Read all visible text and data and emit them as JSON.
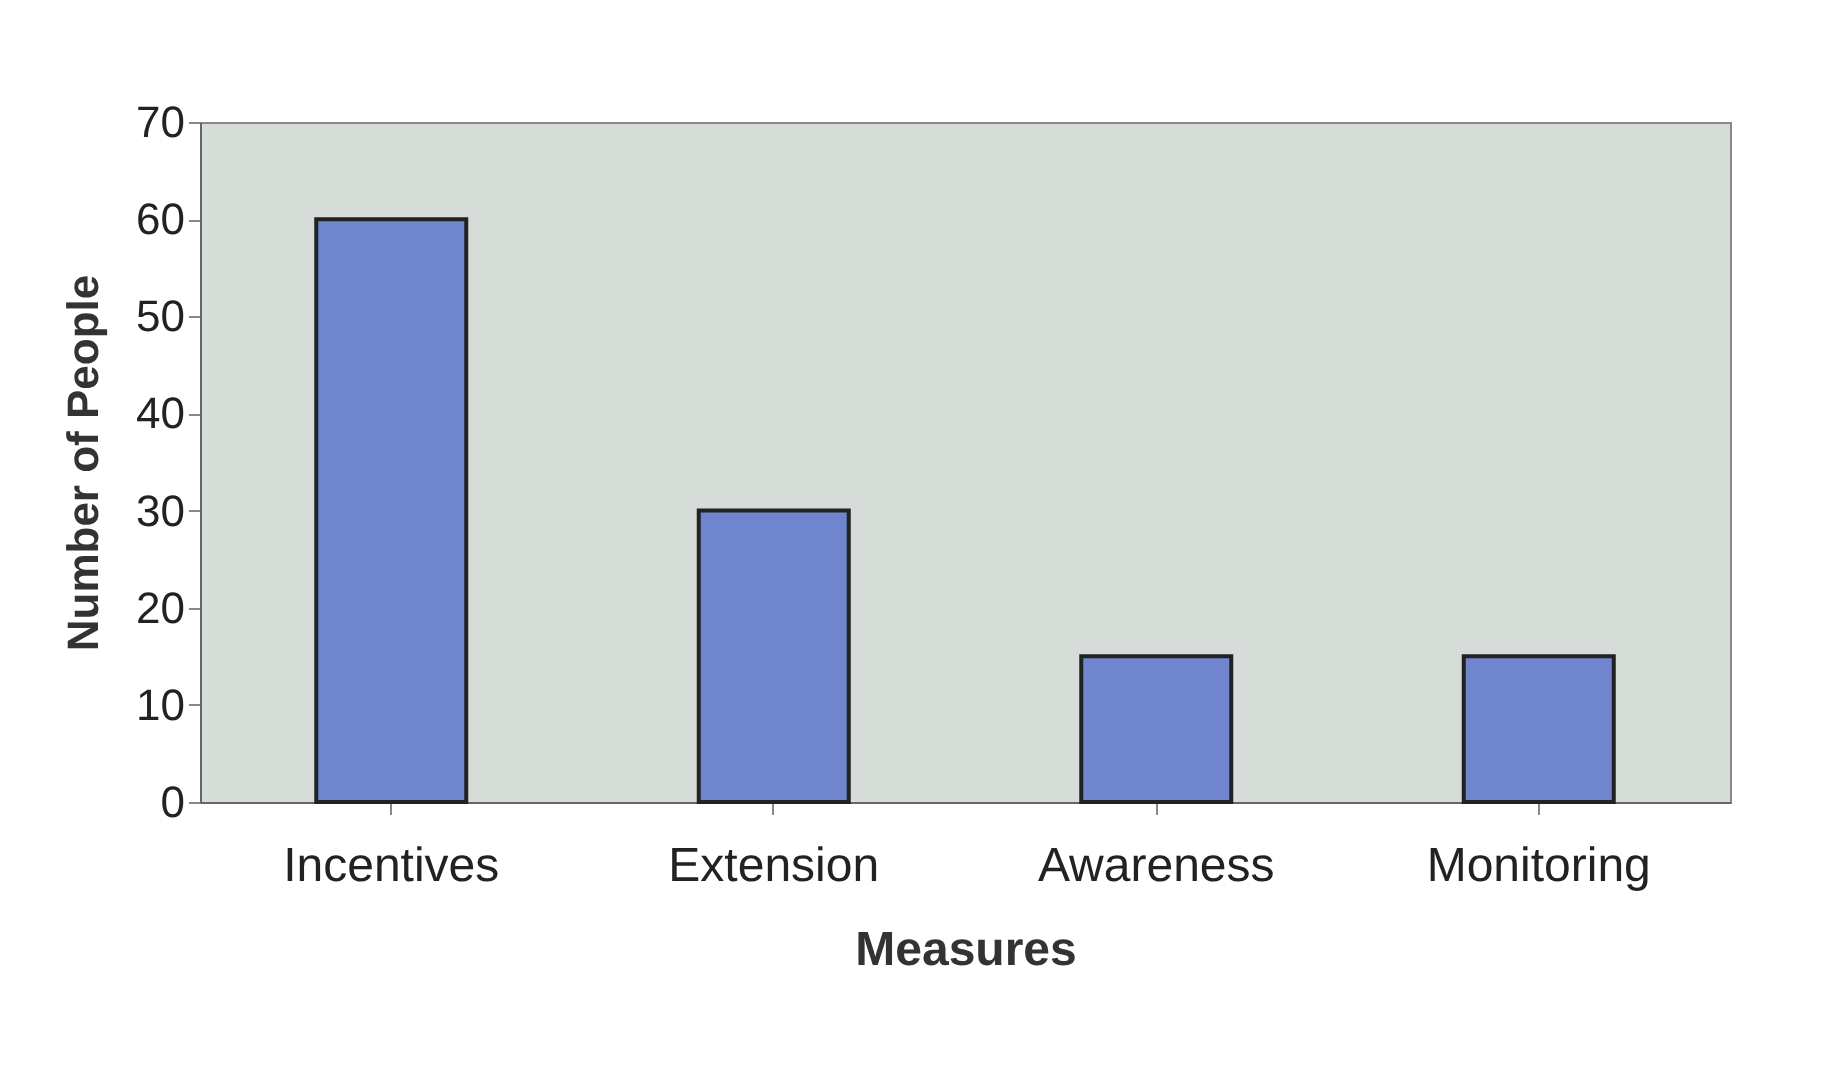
{
  "chart_data": {
    "type": "bar",
    "xlabel": "Measures",
    "ylabel": "Number of People",
    "categories": [
      "Incentives",
      "Extension",
      "Awareness",
      "Monitoring"
    ],
    "values": [
      60,
      30,
      15,
      15
    ],
    "color": "#6f86cf",
    "ylim": [
      0,
      70
    ],
    "yticks": [
      0,
      10,
      20,
      30,
      40,
      50,
      60,
      70
    ]
  }
}
